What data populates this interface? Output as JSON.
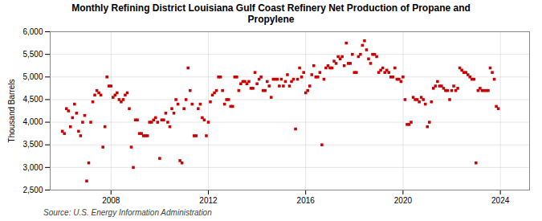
{
  "chart_data": {
    "type": "scatter",
    "title": "Monthly Refining District Louisiana Gulf Coast Refinery Net Production of Propane and\nPropylene",
    "ylabel": "Thousand Barrels",
    "source": "Source: U.S. Energy Information Administration",
    "color": "#cc0000",
    "marker": "square",
    "grid": true,
    "xlim": [
      2005.5,
      2025.2
    ],
    "xticks": [
      2008,
      2012,
      2016,
      2020,
      2024
    ],
    "ylim": [
      2500,
      6000
    ],
    "yticks": [
      {
        "value": 2500,
        "label": "2,500"
      },
      {
        "value": 3000,
        "label": "3,000"
      },
      {
        "value": 3500,
        "label": "3,500"
      },
      {
        "value": 4000,
        "label": "4,000"
      },
      {
        "value": 4500,
        "label": "4,500"
      },
      {
        "value": 5000,
        "label": "5,000"
      },
      {
        "value": 5500,
        "label": "5,500"
      },
      {
        "value": 6000,
        "label": "6,000"
      }
    ],
    "x": [
      2006.0,
      2006.083,
      2006.167,
      2006.25,
      2006.333,
      2006.417,
      2006.5,
      2006.583,
      2006.667,
      2006.75,
      2006.833,
      2006.917,
      2007.0,
      2007.083,
      2007.167,
      2007.25,
      2007.333,
      2007.417,
      2007.5,
      2007.583,
      2007.667,
      2007.75,
      2007.833,
      2007.917,
      2008.0,
      2008.083,
      2008.167,
      2008.25,
      2008.333,
      2008.417,
      2008.5,
      2008.583,
      2008.667,
      2008.75,
      2008.833,
      2008.917,
      2009.0,
      2009.083,
      2009.167,
      2009.25,
      2009.333,
      2009.417,
      2009.5,
      2009.583,
      2009.667,
      2009.75,
      2009.833,
      2009.917,
      2010.0,
      2010.083,
      2010.167,
      2010.25,
      2010.333,
      2010.417,
      2010.5,
      2010.583,
      2010.667,
      2010.75,
      2010.833,
      2010.917,
      2011.0,
      2011.083,
      2011.167,
      2011.25,
      2011.333,
      2011.417,
      2011.5,
      2011.583,
      2011.667,
      2011.75,
      2011.833,
      2011.917,
      2012.0,
      2012.083,
      2012.167,
      2012.25,
      2012.333,
      2012.417,
      2012.5,
      2012.583,
      2012.667,
      2012.75,
      2012.833,
      2012.917,
      2013.0,
      2013.083,
      2013.167,
      2013.25,
      2013.333,
      2013.417,
      2013.5,
      2013.583,
      2013.667,
      2013.75,
      2013.833,
      2013.917,
      2014.0,
      2014.083,
      2014.167,
      2014.25,
      2014.333,
      2014.417,
      2014.5,
      2014.583,
      2014.667,
      2014.75,
      2014.833,
      2014.917,
      2015.0,
      2015.083,
      2015.167,
      2015.25,
      2015.333,
      2015.417,
      2015.5,
      2015.583,
      2015.667,
      2015.75,
      2015.833,
      2015.917,
      2016.0,
      2016.083,
      2016.167,
      2016.25,
      2016.333,
      2016.417,
      2016.5,
      2016.583,
      2016.667,
      2016.75,
      2016.833,
      2016.917,
      2017.0,
      2017.083,
      2017.167,
      2017.25,
      2017.333,
      2017.417,
      2017.5,
      2017.583,
      2017.667,
      2017.75,
      2017.833,
      2017.917,
      2018.0,
      2018.083,
      2018.167,
      2018.25,
      2018.333,
      2018.417,
      2018.5,
      2018.583,
      2018.667,
      2018.75,
      2018.833,
      2018.917,
      2019.0,
      2019.083,
      2019.167,
      2019.25,
      2019.333,
      2019.417,
      2019.5,
      2019.583,
      2019.667,
      2019.75,
      2019.833,
      2019.917,
      2020.0,
      2020.083,
      2020.167,
      2020.25,
      2020.333,
      2020.417,
      2020.5,
      2020.583,
      2020.667,
      2020.75,
      2020.833,
      2020.917,
      2021.0,
      2021.083,
      2021.167,
      2021.25,
      2021.333,
      2021.417,
      2021.5,
      2021.583,
      2021.667,
      2021.75,
      2021.833,
      2021.917,
      2022.0,
      2022.083,
      2022.167,
      2022.25,
      2022.333,
      2022.417,
      2022.5,
      2022.583,
      2022.667,
      2022.75,
      2022.833,
      2022.917,
      2023.0,
      2023.083,
      2023.167,
      2023.25,
      2023.333,
      2023.417,
      2023.5,
      2023.583,
      2023.667,
      2023.75,
      2023.833,
      2023.917
    ],
    "values": [
      3800,
      3750,
      4300,
      4250,
      3900,
      4100,
      4400,
      4200,
      3800,
      3700,
      4000,
      4150,
      2700,
      3100,
      4000,
      4450,
      4600,
      4700,
      4650,
      4600,
      3450,
      3900,
      5000,
      4800,
      4800,
      4550,
      4600,
      4650,
      4500,
      4450,
      4500,
      4600,
      4650,
      4300,
      3450,
      3000,
      4050,
      4050,
      3750,
      3750,
      3700,
      3700,
      3700,
      4000,
      4000,
      4050,
      4100,
      4000,
      3200,
      4050,
      4050,
      4200,
      4000,
      3900,
      4300,
      4200,
      4500,
      4400,
      3150,
      3100,
      4300,
      4500,
      5200,
      4700,
      4400,
      3700,
      3700,
      4300,
      4400,
      4100,
      4050,
      3700,
      4000,
      4450,
      4600,
      4650,
      4700,
      5000,
      5000,
      4700,
      4400,
      4500,
      4500,
      4350,
      4350,
      5000,
      5000,
      4700,
      4850,
      4900,
      4900,
      4850,
      4900,
      4750,
      4750,
      5100,
      4850,
      4950,
      5000,
      4700,
      4700,
      4900,
      4800,
      4550,
      4950,
      4950,
      4950,
      4800,
      4950,
      4800,
      4900,
      5050,
      4800,
      4900,
      4950,
      3850,
      4950,
      5200,
      5000,
      5100,
      4650,
      4700,
      4800,
      5050,
      5250,
      5000,
      5000,
      5100,
      3500,
      4950,
      5200,
      5250,
      5200,
      5200,
      5350,
      5300,
      5450,
      5400,
      5450,
      5250,
      5750,
      5300,
      5300,
      5500,
      5100,
      5100,
      5450,
      5500,
      5700,
      5800,
      5600,
      5400,
      5300,
      5500,
      5500,
      5450,
      5100,
      5150,
      5200,
      5100,
      5150,
      5100,
      5000,
      5000,
      5200,
      4950,
      4950,
      4900,
      5000,
      4500,
      3950,
      3950,
      4000,
      4550,
      4500,
      4500,
      4450,
      4550,
      4500,
      4400,
      3900,
      4000,
      4450,
      4750,
      4800,
      4900,
      4800,
      4800,
      4750,
      4700,
      4700,
      4500,
      4700,
      4800,
      4700,
      4750,
      5200,
      5150,
      5100,
      5100,
      5050,
      5000,
      4950,
      4950,
      3100,
      4700,
      4750,
      4700,
      4700,
      4700,
      4700,
      5200,
      5100,
      4950,
      4350,
      4300
    ]
  }
}
